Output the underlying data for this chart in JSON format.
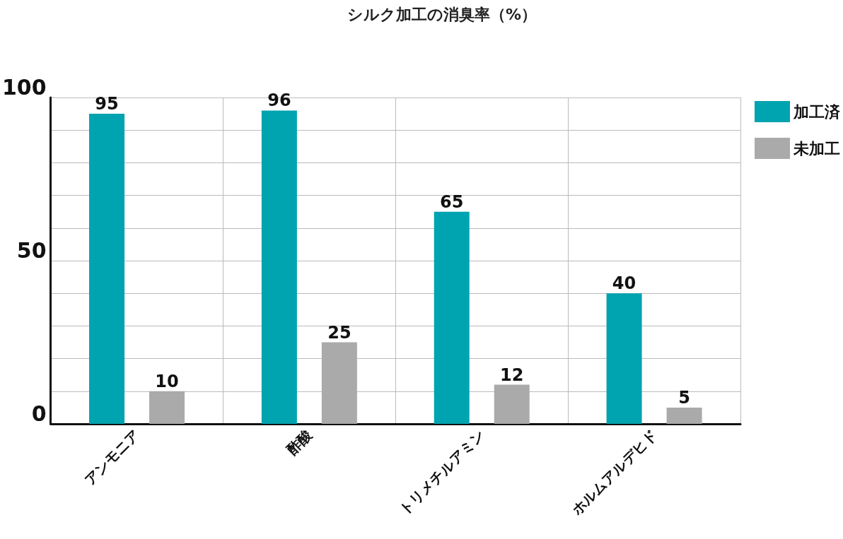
{
  "chart_data": {
    "type": "bar",
    "title": "シルク加工の消臭率（%）",
    "categories": [
      "アンモニア",
      "酢酸",
      "トリメチルアミン",
      "ホルムアルデヒド"
    ],
    "series": [
      {
        "name": "加工済",
        "color": "#00a3b0",
        "values": [
          95,
          96,
          65,
          40
        ]
      },
      {
        "name": "未加工",
        "color": "#aaaaaa",
        "values": [
          10,
          25,
          12,
          5
        ]
      }
    ],
    "ylim": [
      0,
      100
    ],
    "yticks": [
      0,
      {
        "value": 10,
        "label": null
      },
      {
        "value": 20,
        "label": null
      },
      {
        "value": 30,
        "label": null
      },
      {
        "value": 40,
        "label": null
      },
      50,
      {
        "value": 60,
        "label": null
      },
      {
        "value": 70,
        "label": null
      },
      {
        "value": 80,
        "label": null
      },
      {
        "value": 90,
        "label": null
      },
      100
    ],
    "grid": true,
    "legend": "top right",
    "data_labels": true
  }
}
